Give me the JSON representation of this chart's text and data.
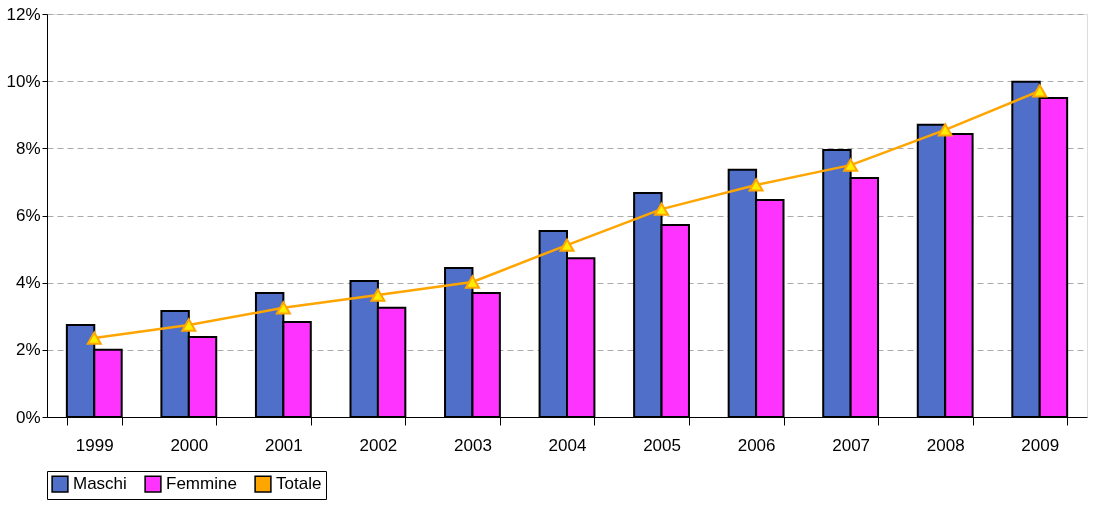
{
  "chart_data": {
    "type": "bar",
    "categories": [
      "1999",
      "2000",
      "2001",
      "2002",
      "2003",
      "2004",
      "2005",
      "2006",
      "2007",
      "2008",
      "2009"
    ],
    "series": [
      {
        "name": "Maschi",
        "color": "#4f6fc8",
        "values": [
          2.74,
          3.16,
          3.69,
          4.05,
          4.44,
          5.54,
          6.67,
          7.36,
          7.95,
          8.7,
          9.98
        ]
      },
      {
        "name": "Femmine",
        "color": "#ff33ff",
        "values": [
          2.0,
          2.38,
          2.83,
          3.25,
          3.69,
          4.73,
          5.72,
          6.46,
          7.12,
          8.43,
          9.5
        ]
      },
      {
        "name": "Totale",
        "type": "line",
        "color": "#ffa500",
        "marker": "triangle",
        "line_style": "solid",
        "values": [
          2.35,
          2.74,
          3.25,
          3.63,
          4.02,
          5.12,
          6.19,
          6.91,
          7.5,
          8.55,
          9.71
        ]
      }
    ],
    "ylim": [
      0,
      12
    ],
    "yticks": [
      {
        "value": 0,
        "label": "0%"
      },
      {
        "value": 2,
        "label": "2%"
      },
      {
        "value": 4,
        "label": "4%"
      },
      {
        "value": 6,
        "label": "6%"
      },
      {
        "value": 8,
        "label": "8%"
      },
      {
        "value": 10,
        "label": "10%"
      },
      {
        "value": 12,
        "label": "12%"
      }
    ],
    "grid": "y",
    "legend": "bottom"
  }
}
